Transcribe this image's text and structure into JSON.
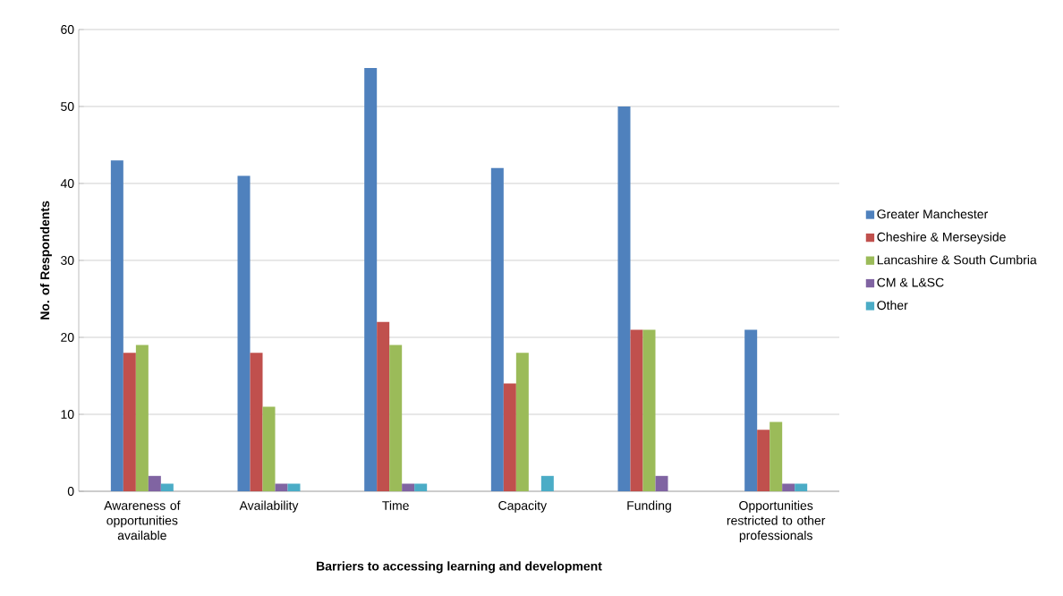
{
  "chart_data": {
    "type": "bar",
    "xlabel": "Barriers to accessing learning and development",
    "ylabel": "No. of Respondents",
    "categories": [
      "Awareness of opportunities available",
      "Availability",
      "Time",
      "Capacity",
      "Funding",
      "Opportunities restricted to other professionals"
    ],
    "series": [
      {
        "name": "Greater Manchester",
        "color": "#4f81bd",
        "values": [
          43,
          41,
          55,
          42,
          50,
          21
        ]
      },
      {
        "name": "Cheshire & Merseyside",
        "color": "#c0504d",
        "values": [
          18,
          18,
          22,
          14,
          21,
          8
        ]
      },
      {
        "name": "Lancashire & South Cumbria",
        "color": "#9bbb59",
        "values": [
          19,
          11,
          19,
          18,
          21,
          9
        ]
      },
      {
        "name": "CM & L&SC",
        "color": "#8064a2",
        "values": [
          2,
          1,
          1,
          0,
          2,
          1
        ]
      },
      {
        "name": "Other",
        "color": "#4bacc6",
        "values": [
          1,
          1,
          1,
          2,
          0,
          1
        ]
      }
    ],
    "ylim": [
      0,
      60
    ],
    "yticks": [
      0,
      10,
      20,
      30,
      40,
      50,
      60
    ],
    "grid": "y",
    "legend": "right"
  }
}
